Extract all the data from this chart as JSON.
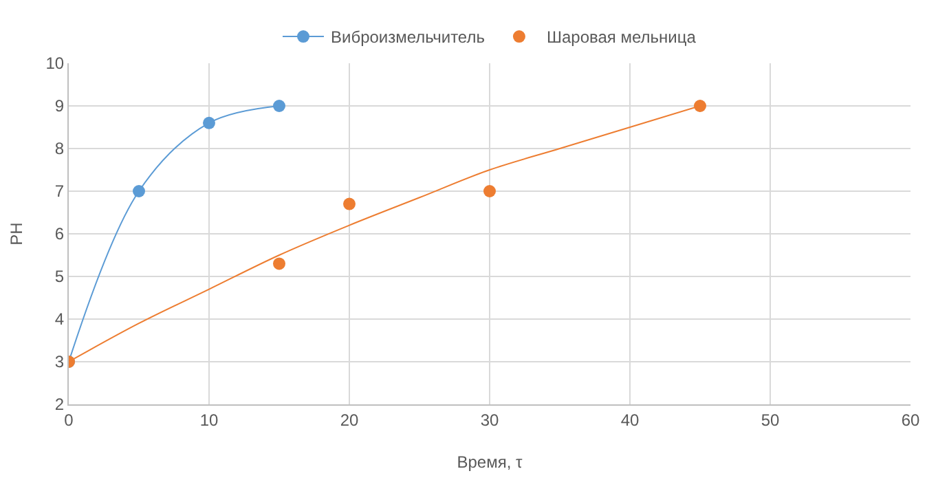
{
  "chart_data": {
    "type": "scatter",
    "xlabel": "Время, τ",
    "ylabel": "PH",
    "xlim": [
      0,
      60
    ],
    "xticks": [
      0,
      10,
      20,
      30,
      40,
      50,
      60
    ],
    "ylim": [
      2,
      10
    ],
    "yticks": [
      2,
      3,
      4,
      5,
      6,
      7,
      8,
      9,
      10
    ],
    "grid": true,
    "legend": "top",
    "marker": "circle",
    "series": [
      {
        "name": "Виброизмельчитель",
        "type": "line",
        "color": "#5b9bd5",
        "x": [
          0,
          5,
          10,
          15
        ],
        "values": [
          3,
          7,
          8.6,
          9
        ]
      },
      {
        "name": "Шаровая мельница",
        "type": "scatter",
        "color": "#ed7d31",
        "x": [
          0,
          15,
          20,
          30,
          45
        ],
        "values": [
          3,
          5.3,
          6.7,
          7,
          9
        ]
      },
      {
        "type": "line",
        "color": "#ed7d31",
        "marker": "none",
        "x": [
          0,
          5,
          10,
          15,
          20,
          25,
          30,
          35,
          40,
          45
        ],
        "values": [
          3,
          3.9,
          4.7,
          5.5,
          6.2,
          6.85,
          7.5,
          8,
          8.5,
          9
        ]
      }
    ]
  }
}
